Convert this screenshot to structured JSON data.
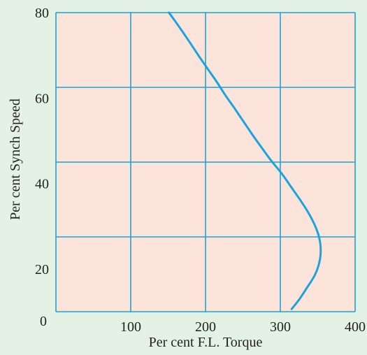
{
  "chart_data": {
    "type": "line",
    "xlabel": "Per cent F.L. Torque",
    "ylabel": "Per cent Synch Speed",
    "xlim": [
      0,
      400
    ],
    "ylim": [
      10,
      80
    ],
    "x_ticks": [
      "100",
      "200",
      "300",
      "400"
    ],
    "y_ticks": [
      "20",
      "40",
      "60",
      "80"
    ],
    "origin_label": "0",
    "grid": true,
    "series": [
      {
        "x": [
          315,
          325,
          336,
          346,
          352,
          354,
          352,
          346,
          337,
          326,
          314,
          302,
          288,
          275,
          262,
          250,
          238,
          226,
          215,
          203,
          192,
          181,
          171,
          161,
          151
        ],
        "y": [
          10.6,
          12.8,
          15.7,
          18.5,
          21.4,
          24.3,
          27.3,
          30.3,
          33.3,
          36.3,
          39.3,
          42.3,
          45.3,
          48.4,
          51.6,
          54.7,
          57.8,
          60.8,
          63.8,
          66.8,
          69.6,
          72.5,
          75.1,
          77.6,
          80.0
        ]
      }
    ],
    "colors": {
      "plot_background": "#fde4da",
      "page_background": "#e4f2e6",
      "grid": "#1aa3dc",
      "line": "#1aa3dc",
      "text": "#231f20"
    }
  }
}
